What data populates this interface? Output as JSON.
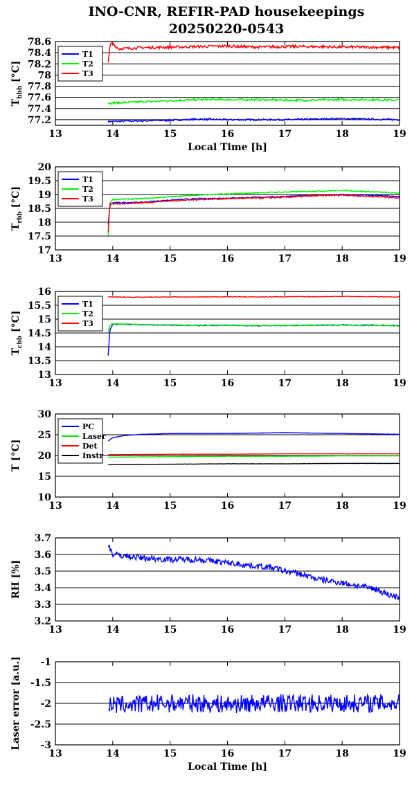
{
  "title_line1": "INO-CNR, REFIR-PAD housekeepings",
  "title_line2": "20250220-0543",
  "colors": {
    "blue": "#0000ff",
    "green": "#00ee00",
    "red": "#ff0000",
    "black": "#000000"
  },
  "chart_data": [
    {
      "type": "line",
      "ylabel_main": "T",
      "ylabel_sub": "hbb",
      "ylabel_unit": " [°C]",
      "xlabel": "Local Time [h]",
      "xlim": [
        13,
        19
      ],
      "ylim": [
        77.1,
        78.6
      ],
      "xticks": [
        "13",
        "14",
        "15",
        "16",
        "17",
        "18",
        "19"
      ],
      "yticks": [
        "77.2",
        "77.4",
        "77.6",
        "77.8",
        "78",
        "78.2",
        "78.4",
        "78.6"
      ],
      "grid": true,
      "legend": "top-left",
      "series": [
        {
          "name": "T1",
          "color": "#0000ff",
          "x": [
            13.92,
            14.0,
            14.5,
            15.0,
            15.5,
            16.0,
            16.5,
            17.0,
            17.5,
            18.0,
            18.5,
            19.0
          ],
          "y": [
            77.17,
            77.17,
            77.18,
            77.19,
            77.21,
            77.2,
            77.2,
            77.2,
            77.21,
            77.22,
            77.21,
            77.2
          ],
          "noise": 0.015
        },
        {
          "name": "T2",
          "color": "#00ee00",
          "x": [
            13.92,
            14.0,
            14.5,
            15.0,
            15.5,
            16.0,
            16.5,
            17.0,
            17.5,
            18.0,
            18.5,
            19.0
          ],
          "y": [
            77.5,
            77.5,
            77.52,
            77.54,
            77.56,
            77.56,
            77.56,
            77.55,
            77.55,
            77.56,
            77.56,
            77.55
          ],
          "noise": 0.02
        },
        {
          "name": "T3",
          "color": "#ff0000",
          "x": [
            13.92,
            13.96,
            14.0,
            14.1,
            14.5,
            15.0,
            15.5,
            16.0,
            16.5,
            17.0,
            17.5,
            18.0,
            18.5,
            19.0
          ],
          "y": [
            78.25,
            78.55,
            78.57,
            78.47,
            78.49,
            78.5,
            78.51,
            78.52,
            78.5,
            78.51,
            78.51,
            78.5,
            78.5,
            78.49
          ],
          "noise": 0.025
        }
      ]
    },
    {
      "type": "line",
      "ylabel_main": "T",
      "ylabel_sub": "rbb",
      "ylabel_unit": " [°C]",
      "xlabel": "",
      "xlim": [
        13,
        19
      ],
      "ylim": [
        17,
        20
      ],
      "xticks": [
        "13",
        "14",
        "15",
        "16",
        "17",
        "18",
        "19"
      ],
      "yticks": [
        "17",
        "17.5",
        "18",
        "18.5",
        "19",
        "19.5",
        "20"
      ],
      "grid": true,
      "legend": "top-left",
      "series": [
        {
          "name": "T1",
          "color": "#0000ff",
          "x": [
            13.92,
            13.95,
            14.0,
            14.5,
            15.0,
            15.5,
            16.0,
            16.5,
            17.0,
            17.5,
            18.0,
            18.5,
            19.0
          ],
          "y": [
            17.9,
            18.6,
            18.7,
            18.72,
            18.8,
            18.85,
            18.87,
            18.9,
            18.93,
            18.97,
            19.0,
            18.97,
            18.92
          ],
          "noise": 0.02
        },
        {
          "name": "T2",
          "color": "#00ee00",
          "x": [
            13.92,
            13.95,
            14.0,
            14.5,
            15.0,
            15.5,
            16.0,
            16.5,
            17.0,
            17.5,
            18.0,
            18.5,
            19.0
          ],
          "y": [
            17.55,
            18.7,
            18.82,
            18.85,
            18.92,
            18.98,
            19.02,
            19.06,
            19.09,
            19.12,
            19.15,
            19.1,
            19.05
          ],
          "noise": 0.02
        },
        {
          "name": "T3",
          "color": "#ff0000",
          "x": [
            13.92,
            13.95,
            14.0,
            14.5,
            15.0,
            15.5,
            16.0,
            16.5,
            17.0,
            17.5,
            18.0,
            18.5,
            19.0
          ],
          "y": [
            17.65,
            18.7,
            18.65,
            18.7,
            18.77,
            18.82,
            18.85,
            18.87,
            18.9,
            18.95,
            18.98,
            18.93,
            18.88
          ],
          "noise": 0.025
        }
      ]
    },
    {
      "type": "line",
      "ylabel_main": "T",
      "ylabel_sub": "cbb",
      "ylabel_unit": " [°C]",
      "xlabel": "",
      "xlim": [
        13,
        19
      ],
      "ylim": [
        13,
        16
      ],
      "xticks": [
        "13",
        "14",
        "15",
        "16",
        "17",
        "18",
        "19"
      ],
      "yticks": [
        "13",
        "13.5",
        "14",
        "14.5",
        "15",
        "15.5",
        "16"
      ],
      "grid": true,
      "legend": "top-left",
      "series": [
        {
          "name": "T1",
          "color": "#0000ff",
          "x": [
            13.92,
            13.95,
            14.0,
            14.5,
            15.0,
            15.5,
            16.0,
            16.5,
            17.0,
            17.5,
            18.0,
            18.5,
            19.0
          ],
          "y": [
            13.7,
            14.6,
            14.82,
            14.8,
            14.78,
            14.77,
            14.78,
            14.76,
            14.77,
            14.78,
            14.79,
            14.78,
            14.77
          ],
          "noise": 0.015
        },
        {
          "name": "T2",
          "color": "#00ee00",
          "x": [
            13.92,
            13.95,
            14.0,
            14.5,
            15.0,
            15.5,
            16.0,
            16.5,
            17.0,
            17.5,
            18.0,
            18.5,
            19.0
          ],
          "y": [
            14.55,
            14.78,
            14.83,
            14.8,
            14.79,
            14.78,
            14.78,
            14.77,
            14.77,
            14.78,
            14.78,
            14.77,
            14.76
          ],
          "noise": 0.02
        },
        {
          "name": "T3",
          "color": "#ff0000",
          "x": [
            13.92,
            14.0,
            14.5,
            15.0,
            15.5,
            16.0,
            16.5,
            17.0,
            17.5,
            18.0,
            18.5,
            19.0
          ],
          "y": [
            15.8,
            15.8,
            15.79,
            15.8,
            15.8,
            15.81,
            15.8,
            15.81,
            15.81,
            15.82,
            15.81,
            15.8
          ],
          "noise": 0.012
        }
      ]
    },
    {
      "type": "line",
      "ylabel_main": "T [°C]",
      "ylabel_sub": "",
      "ylabel_unit": "",
      "xlabel": "",
      "xlim": [
        13,
        19
      ],
      "ylim": [
        10,
        30
      ],
      "xticks": [
        "13",
        "14",
        "15",
        "16",
        "17",
        "18",
        "19"
      ],
      "yticks": [
        "10",
        "15",
        "20",
        "25",
        "30"
      ],
      "grid": true,
      "legend": "top-left",
      "series": [
        {
          "name": "PC",
          "color": "#0000ff",
          "x": [
            13.92,
            14.0,
            14.2,
            14.5,
            15.0,
            15.5,
            16.0,
            16.5,
            17.0,
            17.5,
            18.0,
            18.5,
            19.0
          ],
          "y": [
            23.5,
            24.3,
            24.8,
            25.1,
            25.3,
            25.3,
            25.3,
            25.4,
            25.5,
            25.4,
            25.3,
            25.2,
            25.1
          ],
          "noise": 0.03
        },
        {
          "name": "Laser",
          "color": "#00ee00",
          "x": [
            13.92,
            14.0,
            15.0,
            16.0,
            17.0,
            18.0,
            19.0
          ],
          "y": [
            19.6,
            19.6,
            19.7,
            19.8,
            19.8,
            19.9,
            19.9
          ],
          "noise": 0.02
        },
        {
          "name": "Det",
          "color": "#ff0000",
          "x": [
            13.92,
            14.0,
            15.0,
            16.0,
            17.0,
            18.0,
            19.0
          ],
          "y": [
            20.2,
            20.2,
            20.3,
            20.3,
            20.4,
            20.4,
            20.4
          ],
          "noise": 0.02
        },
        {
          "name": "Instr",
          "color": "#000000",
          "x": [
            13.92,
            14.0,
            15.0,
            16.0,
            17.0,
            18.0,
            19.0
          ],
          "y": [
            17.8,
            17.8,
            17.9,
            18.0,
            18.0,
            18.1,
            18.1
          ],
          "noise": 0.03
        }
      ]
    },
    {
      "type": "line",
      "ylabel_main": "RH [%]",
      "ylabel_sub": "",
      "ylabel_unit": "",
      "xlabel": "",
      "xlim": [
        13,
        19
      ],
      "ylim": [
        3.2,
        3.7
      ],
      "xticks": [
        "13",
        "14",
        "15",
        "16",
        "17",
        "18",
        "19"
      ],
      "yticks": [
        "3.2",
        "3.3",
        "3.4",
        "3.5",
        "3.6",
        "3.7"
      ],
      "grid": true,
      "legend": "none",
      "series": [
        {
          "name": "",
          "color": "#0000ff",
          "x": [
            13.92,
            13.95,
            14.0,
            14.5,
            15.0,
            15.5,
            16.0,
            16.5,
            16.8,
            17.0,
            17.3,
            17.6,
            18.0,
            18.3,
            18.6,
            18.8,
            19.0
          ],
          "y": [
            3.67,
            3.64,
            3.6,
            3.58,
            3.57,
            3.57,
            3.55,
            3.53,
            3.52,
            3.5,
            3.48,
            3.45,
            3.43,
            3.41,
            3.39,
            3.36,
            3.34
          ],
          "noise": 0.018
        }
      ]
    },
    {
      "type": "line",
      "ylabel_main": "Laser error [a.u.]",
      "ylabel_sub": "",
      "ylabel_unit": "",
      "xlabel": "Local Time [h]",
      "xlim": [
        13,
        19
      ],
      "ylim": [
        -3,
        -1
      ],
      "xticks": [
        "13",
        "14",
        "15",
        "16",
        "17",
        "18",
        "19"
      ],
      "yticks": [
        "-3",
        "-2.5",
        "-2",
        "-1.5",
        "-1"
      ],
      "grid": true,
      "legend": "none",
      "series": [
        {
          "name": "",
          "color": "#0000ff",
          "x": [
            13.92,
            14.5,
            15.0,
            15.5,
            16.0,
            16.5,
            17.0,
            17.5,
            18.0,
            18.5,
            19.0
          ],
          "y": [
            -2.05,
            -2.02,
            -2.0,
            -2.0,
            -2.03,
            -2.0,
            -2.0,
            -2.0,
            -2.0,
            -2.0,
            -2.0
          ],
          "noise": 0.22
        }
      ]
    }
  ]
}
